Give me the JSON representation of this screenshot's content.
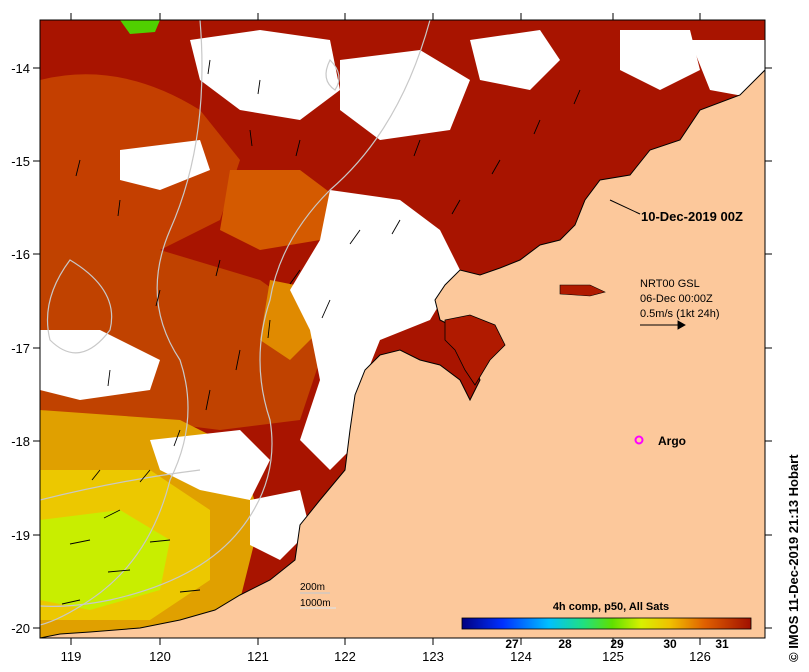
{
  "map": {
    "date_label": "10-Dec-2019 00Z",
    "current_info": {
      "line1": "NRT00 GSL",
      "line2": "06-Dec 00:00Z",
      "line3": "0.5m/s (1kt 24h)"
    },
    "argo_label": "Argo",
    "bathymetry_legend": {
      "contour_1": "200m",
      "contour_2": "1000m"
    },
    "credit": "© IMOS 11-Dec-2019 21:13 Hobart",
    "colorbar": {
      "title": "4h comp, p50, All Sats",
      "ticks": [
        "27",
        "28",
        "29",
        "30",
        "31"
      ],
      "range": [
        26.2,
        31.7
      ]
    },
    "x_ticks": [
      "119",
      "120",
      "121",
      "122",
      "123",
      "124",
      "125",
      "126"
    ],
    "y_ticks": [
      "-14",
      "-15",
      "-16",
      "-17",
      "-18",
      "-19",
      "-20"
    ],
    "colors": {
      "land": "#fcc89b",
      "sst_hot": "#a81400",
      "sst_warm": "#c43f00",
      "sst_mid": "#e06e00",
      "sst_cool": "#ecc000",
      "sst_coolest": "#c8f000",
      "argo": "#ff00ff",
      "cloud": "#ffffff"
    }
  }
}
